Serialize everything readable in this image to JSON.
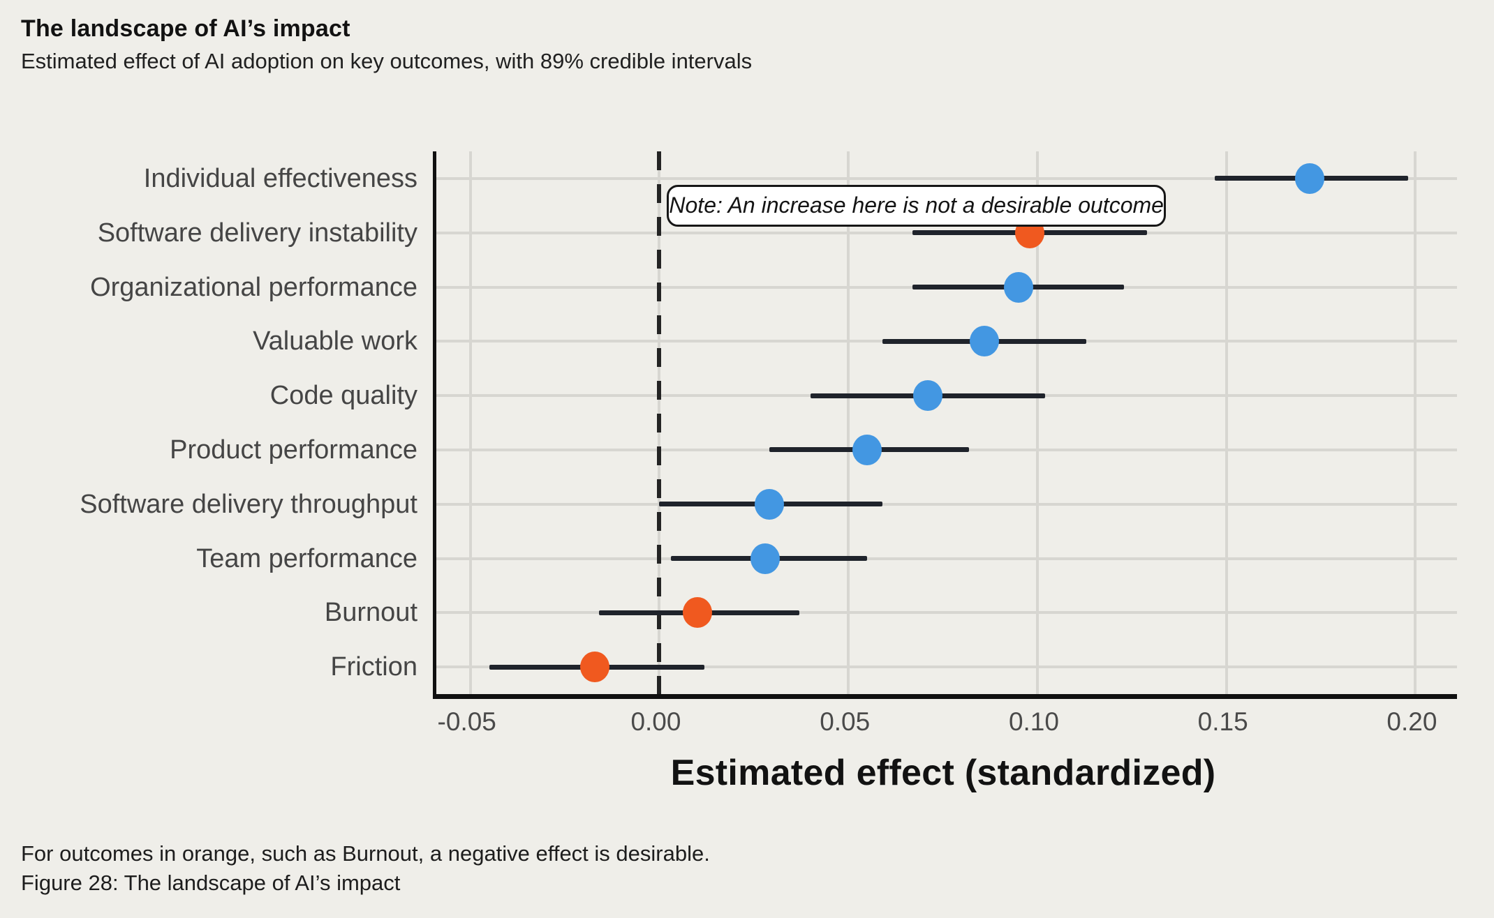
{
  "header": {
    "title": "The landscape of AI’s impact",
    "subtitle": "Estimated effect of AI adoption on key outcomes, with 89% credible intervals"
  },
  "footer": {
    "line1": "For outcomes in orange, such as Burnout, a negative effect is desirable.",
    "line2": "Figure 28: The landscape of AI’s impact"
  },
  "colors": {
    "background": "#EFEEE9",
    "blue": "#4397E2",
    "orange": "#F0591F",
    "ci_line": "#1F232B",
    "gridline": "#D7D6D1",
    "axis": "#101010",
    "label_text": "#454545",
    "note_background": "#FFFFFF",
    "note_border": "#161616"
  },
  "chart_data": {
    "type": "scatter",
    "subtype": "dot-and-interval (horizontal credible intervals, forest plot)",
    "title": "The landscape of AI’s impact",
    "subtitle": "Estimated effect of AI adoption on key outcomes, with 89% credible intervals",
    "xlabel": "Estimated effect (standardized)",
    "ylabel": "",
    "xlim": [
      -0.059,
      0.211
    ],
    "x_ticks": [
      -0.05,
      0.0,
      0.05,
      0.1,
      0.15,
      0.2
    ],
    "x_tick_labels": [
      "-0.05",
      "0.00",
      "0.05",
      "0.10",
      "0.15",
      "0.20"
    ],
    "grid": true,
    "legend_position": "none",
    "zero_reference_line": 0,
    "categories": [
      "Individual effectiveness",
      "Software delivery instability",
      "Organizational performance",
      "Valuable work",
      "Code quality",
      "Product performance",
      "Software delivery throughput",
      "Team performance",
      "Burnout",
      "Friction"
    ],
    "points": [
      {
        "label": "Individual effectiveness",
        "estimate": 0.172,
        "ci_low": 0.147,
        "ci_high": 0.198,
        "color": "blue"
      },
      {
        "label": "Software delivery instability",
        "estimate": 0.098,
        "ci_low": 0.067,
        "ci_high": 0.129,
        "color": "orange"
      },
      {
        "label": "Organizational performance",
        "estimate": 0.095,
        "ci_low": 0.067,
        "ci_high": 0.123,
        "color": "blue"
      },
      {
        "label": "Valuable work",
        "estimate": 0.086,
        "ci_low": 0.059,
        "ci_high": 0.113,
        "color": "blue"
      },
      {
        "label": "Code quality",
        "estimate": 0.071,
        "ci_low": 0.04,
        "ci_high": 0.102,
        "color": "blue"
      },
      {
        "label": "Product performance",
        "estimate": 0.055,
        "ci_low": 0.029,
        "ci_high": 0.082,
        "color": "blue"
      },
      {
        "label": "Software delivery throughput",
        "estimate": 0.029,
        "ci_low": 0.0,
        "ci_high": 0.059,
        "color": "blue"
      },
      {
        "label": "Team performance",
        "estimate": 0.028,
        "ci_low": 0.003,
        "ci_high": 0.055,
        "color": "blue"
      },
      {
        "label": "Burnout",
        "estimate": 0.01,
        "ci_low": -0.016,
        "ci_high": 0.037,
        "color": "orange"
      },
      {
        "label": "Friction",
        "estimate": -0.017,
        "ci_low": -0.045,
        "ci_high": 0.012,
        "color": "orange"
      }
    ],
    "annotation": {
      "text": "Note: An increase here is not a desirable outcome",
      "x_from": 0.002,
      "x_to": 0.134,
      "anchor_between_rows": [
        0,
        1
      ]
    }
  }
}
